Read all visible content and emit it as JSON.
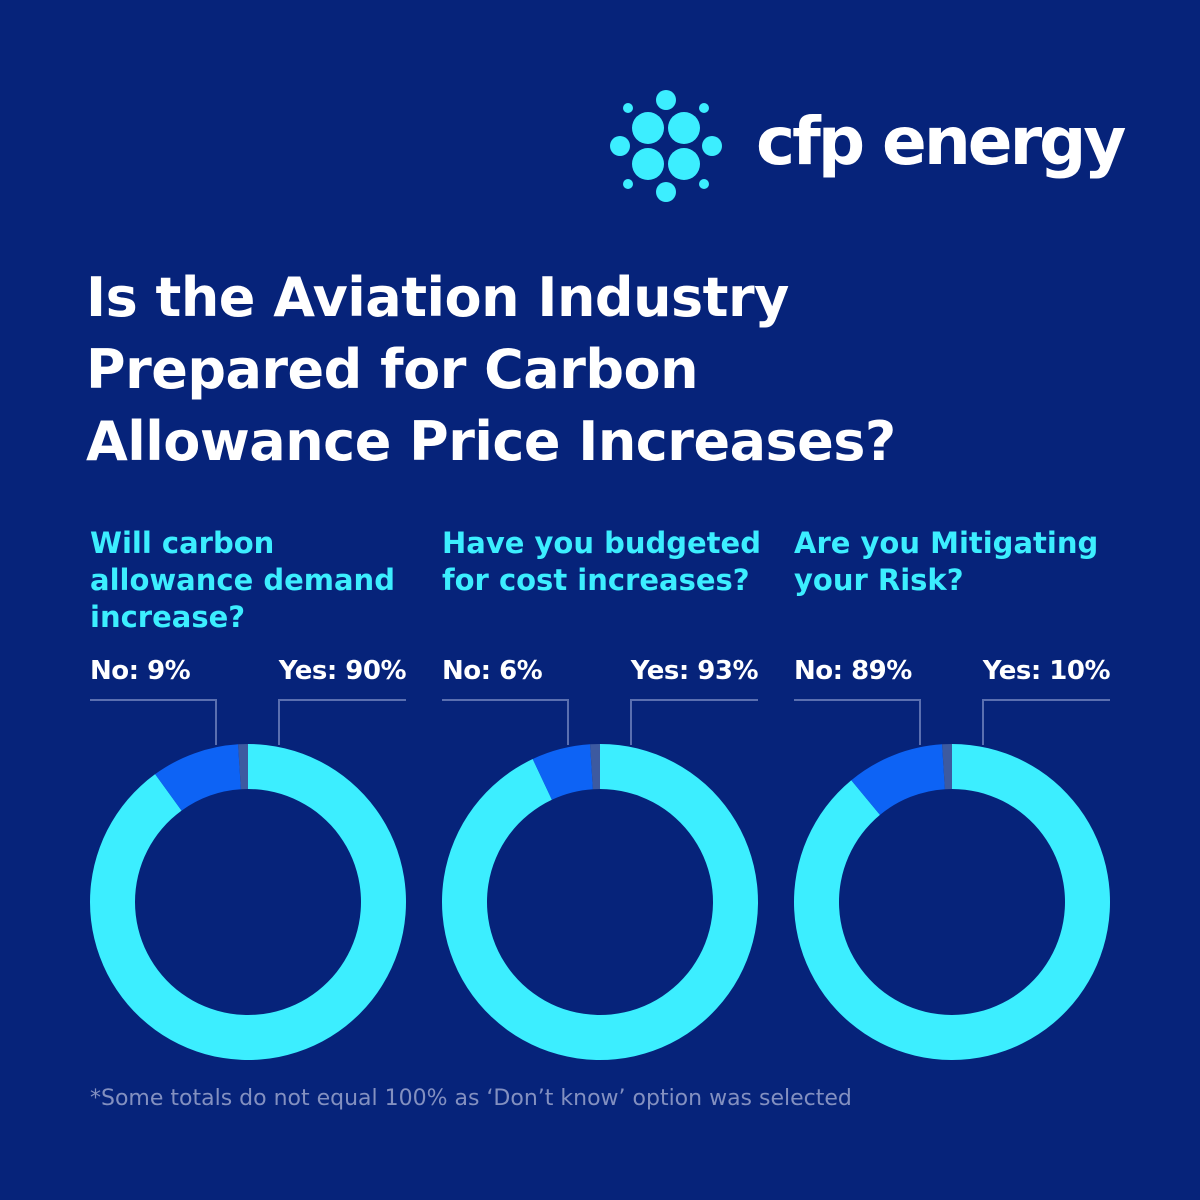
{
  "brand": {
    "name": "cfp energy",
    "accent": "#3ceeff",
    "background": "#06237a"
  },
  "title_lines": [
    "Is the Aviation Industry",
    "Prepared for Carbon",
    "Allowance Price Increases?"
  ],
  "colors": {
    "large": "#3ceeff",
    "small": "#0d63f5",
    "dont_know": "#3d5aa0",
    "leader": "#5a6fb0"
  },
  "chart_data": [
    {
      "type": "pie",
      "title": "Will carbon allowance demand increase?",
      "labels": {
        "no": "No: 9%",
        "yes": "Yes: 90%"
      },
      "slices": [
        {
          "label": "Yes",
          "value": 90,
          "color": "#3ceeff"
        },
        {
          "label": "No",
          "value": 9,
          "color": "#0d63f5"
        },
        {
          "label": "Don't know",
          "value": 1,
          "color": "#3d5aa0"
        }
      ]
    },
    {
      "type": "pie",
      "title": "Have you budgeted for cost increases?",
      "labels": {
        "no": "No: 6%",
        "yes": "Yes: 93%"
      },
      "slices": [
        {
          "label": "Yes",
          "value": 93,
          "color": "#3ceeff"
        },
        {
          "label": "No",
          "value": 6,
          "color": "#0d63f5"
        },
        {
          "label": "Don't know",
          "value": 1,
          "color": "#3d5aa0"
        }
      ]
    },
    {
      "type": "pie",
      "title": "Are you Mitigating your Risk?",
      "labels": {
        "no": "No: 89%",
        "yes": "Yes: 10%"
      },
      "slices": [
        {
          "label": "No",
          "value": 89,
          "color": "#3ceeff"
        },
        {
          "label": "Yes",
          "value": 10,
          "color": "#0d63f5"
        },
        {
          "label": "Don't know",
          "value": 1,
          "color": "#3d5aa0"
        }
      ]
    }
  ],
  "footnote": "*Some totals do not equal 100% as ‘Don’t know’ option was selected"
}
